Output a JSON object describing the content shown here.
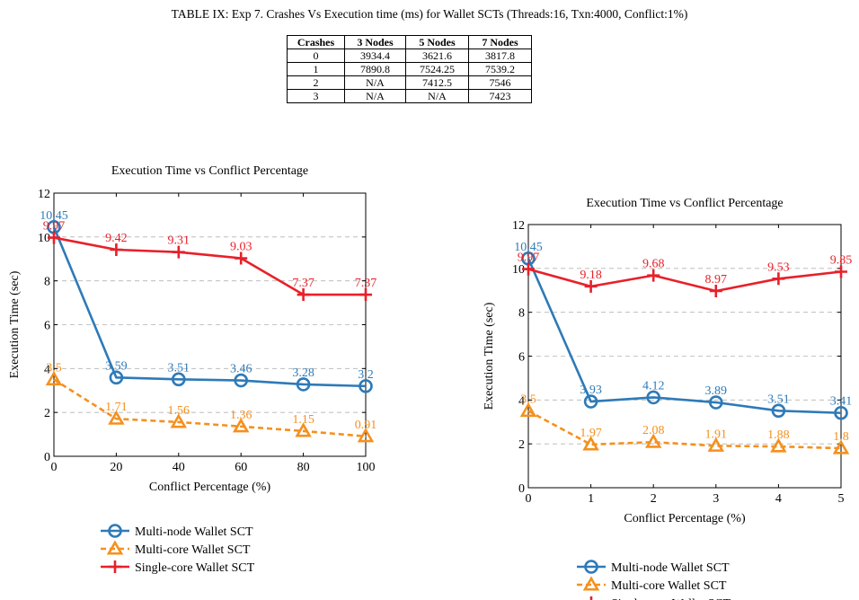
{
  "table": {
    "caption": "TABLE IX: Exp 7. Crashes Vs Execution time (ms) for Wallet SCTs (Threads:16, Txn:4000, Conflict:1%)",
    "headers": [
      "Crashes",
      "3 Nodes",
      "5 Nodes",
      "7 Nodes"
    ],
    "rows": [
      [
        "0",
        "3934.4",
        "3621.6",
        "3817.8"
      ],
      [
        "1",
        "7890.8",
        "7524.25",
        "7539.2"
      ],
      [
        "2",
        "N/A",
        "7412.5",
        "7546"
      ],
      [
        "3",
        "N/A",
        "N/A",
        "7423"
      ]
    ]
  },
  "colors": {
    "multi_node": "#2e7ab8",
    "multi_core": "#f5901e",
    "single_core": "#e8202a"
  },
  "chart_data": [
    {
      "type": "line",
      "title": "Execution Time vs Conflict Percentage",
      "xlabel": "Conflict Percentage (%)",
      "ylabel": "Execution Time (sec)",
      "x": [
        0,
        20,
        40,
        60,
        80,
        100
      ],
      "xticks": [
        "0",
        "20",
        "40",
        "60",
        "80",
        "100"
      ],
      "yticks": [
        "0",
        "2",
        "4",
        "6",
        "8",
        "10",
        "12"
      ],
      "xlim": [
        0,
        100
      ],
      "ylim": [
        0,
        12
      ],
      "grid": "horizontal dashed",
      "legend_position": "below",
      "series": [
        {
          "name": "Multi-node Wallet SCT",
          "values": [
            10.45,
            3.59,
            3.51,
            3.46,
            3.28,
            3.2
          ],
          "labels": [
            "10.45",
            "3.59",
            "3.51",
            "3.46",
            "3.28",
            "3.2"
          ]
        },
        {
          "name": "Multi-core Wallet SCT",
          "values": [
            3.5,
            1.71,
            1.56,
            1.36,
            1.15,
            0.91
          ],
          "labels": [
            "3.5",
            "1.71",
            "1.56",
            "1.36",
            "1.15",
            "0.91"
          ]
        },
        {
          "name": "Single-core Wallet SCT",
          "values": [
            9.97,
            9.42,
            9.31,
            9.03,
            7.37,
            7.37
          ],
          "labels": [
            "9.97",
            "9.42",
            "9.31",
            "9.03",
            "7.37",
            "7.37"
          ]
        }
      ]
    },
    {
      "type": "line",
      "title": "Execution Time vs Conflict Percentage",
      "xlabel": "Conflict Percentage (%)",
      "ylabel": "Execution Time (sec)",
      "x": [
        0,
        1,
        2,
        3,
        4,
        5
      ],
      "xticks": [
        "0",
        "1",
        "2",
        "3",
        "4",
        "5"
      ],
      "yticks": [
        "0",
        "2",
        "4",
        "6",
        "8",
        "10",
        "12"
      ],
      "xlim": [
        0,
        5
      ],
      "ylim": [
        0,
        12
      ],
      "grid": "horizontal dashed",
      "legend_position": "below",
      "series": [
        {
          "name": "Multi-node Wallet SCT",
          "values": [
            10.45,
            3.93,
            4.12,
            3.89,
            3.51,
            3.41
          ],
          "labels": [
            "10.45",
            "3.93",
            "4.12",
            "3.89",
            "3.51",
            "3.41"
          ]
        },
        {
          "name": "Multi-core Wallet SCT",
          "values": [
            3.5,
            1.97,
            2.08,
            1.91,
            1.88,
            1.8
          ],
          "labels": [
            "3.5",
            "1.97",
            "2.08",
            "1.91",
            "1.88",
            "1.8"
          ]
        },
        {
          "name": "Single-core Wallet SCT",
          "values": [
            9.97,
            9.18,
            9.68,
            8.97,
            9.53,
            9.85
          ],
          "labels": [
            "9.97",
            "9.18",
            "9.68",
            "8.97",
            "9.53",
            "9.85"
          ]
        }
      ]
    }
  ]
}
